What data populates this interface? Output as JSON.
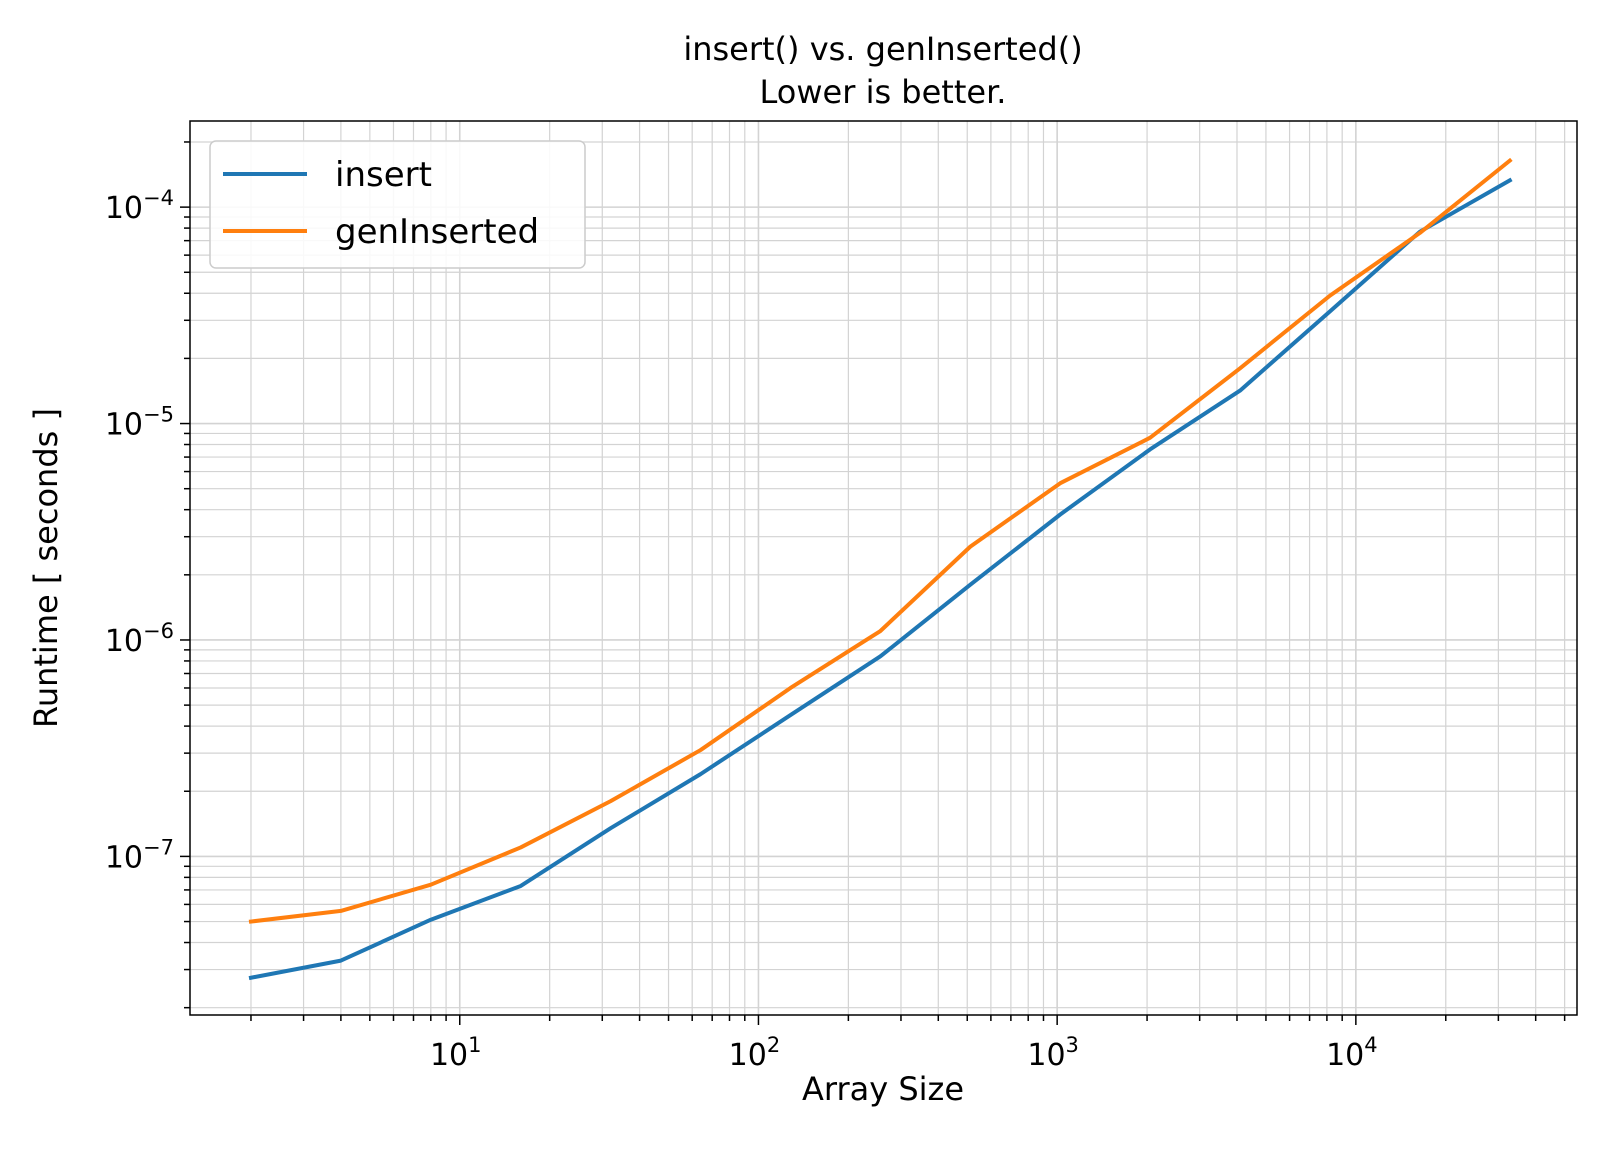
{
  "chart_data": {
    "type": "line",
    "title": "insert() vs. genInserted()",
    "subtitle": "Lower is better.",
    "xlabel": "Array Size",
    "ylabel": "Runtime [ seconds ]",
    "xscale": "log",
    "yscale": "log",
    "xlim": [
      1.25,
      55000
    ],
    "ylim": [
      1.85e-08,
      0.00025
    ],
    "grid": true,
    "legend_position": "top-left",
    "x_tick_labels": [
      {
        "value": 10,
        "mantissa": "10",
        "exponent": "1"
      },
      {
        "value": 100,
        "mantissa": "10",
        "exponent": "2"
      },
      {
        "value": 1000,
        "mantissa": "10",
        "exponent": "3"
      },
      {
        "value": 10000,
        "mantissa": "10",
        "exponent": "4"
      }
    ],
    "y_tick_labels": [
      {
        "value": 1e-07,
        "mantissa": "10",
        "exponent": "−7"
      },
      {
        "value": 1e-06,
        "mantissa": "10",
        "exponent": "−6"
      },
      {
        "value": 1e-05,
        "mantissa": "10",
        "exponent": "−5"
      },
      {
        "value": 0.0001,
        "mantissa": "10",
        "exponent": "−4"
      }
    ],
    "x": [
      2,
      4,
      8,
      16,
      32,
      64,
      128,
      256,
      512,
      1024,
      2048,
      4096,
      8192,
      16384,
      32768
    ],
    "series": [
      {
        "name": "insert",
        "color": "#1f77b4",
        "values": [
          2.75e-08,
          3.3e-08,
          5.1e-08,
          7.3e-08,
          1.35e-07,
          2.4e-07,
          4.5e-07,
          8.4e-07,
          1.8e-06,
          3.8e-06,
          7.6e-06,
          1.42e-05,
          3.3e-05,
          7.7e-05,
          0.000133
        ]
      },
      {
        "name": "genInserted",
        "color": "#ff7f0e",
        "values": [
          5e-08,
          5.6e-08,
          7.4e-08,
          1.1e-07,
          1.8e-07,
          3.1e-07,
          6e-07,
          1.1e-06,
          2.7e-06,
          5.3e-06,
          8.6e-06,
          1.8e-05,
          3.9e-05,
          7.6e-05,
          0.000164
        ]
      }
    ]
  }
}
